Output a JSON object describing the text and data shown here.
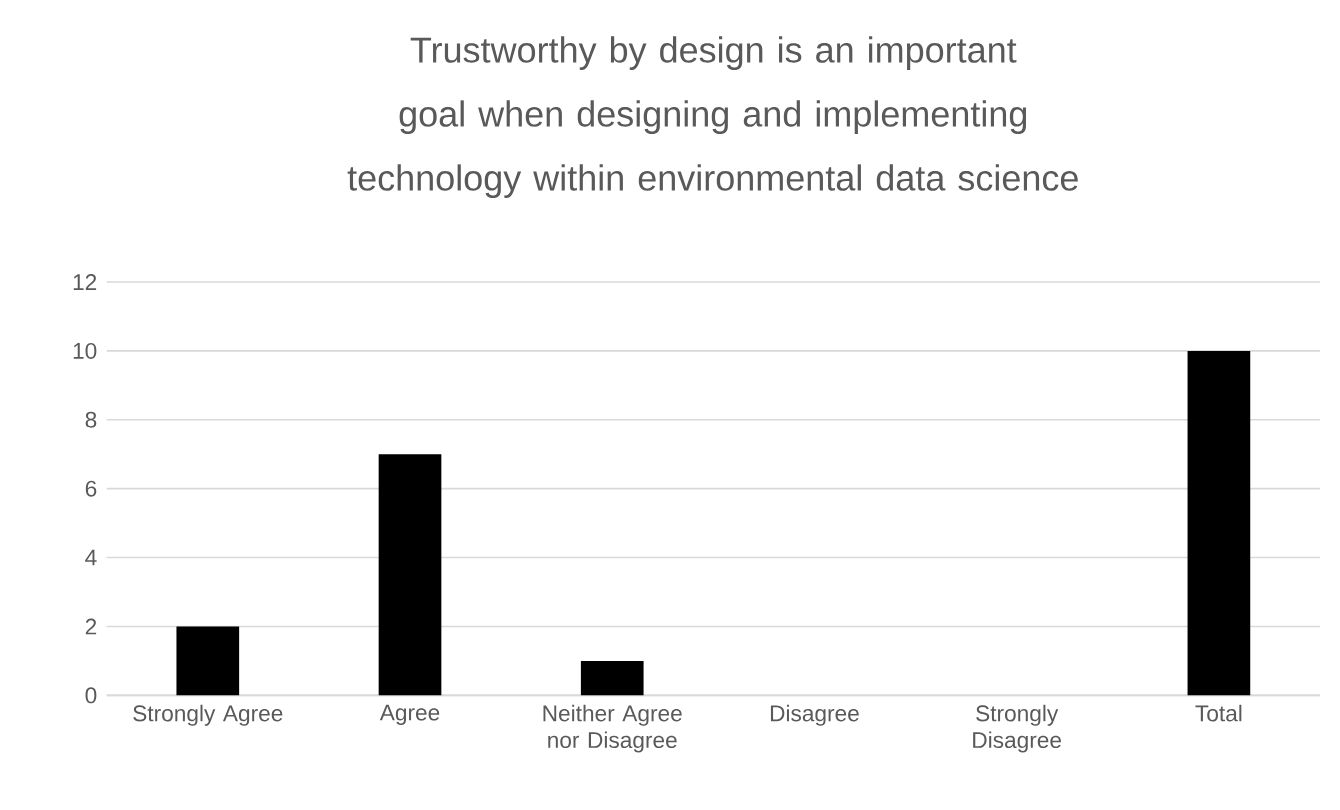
{
  "chart_data": {
    "type": "bar",
    "title": "Trustworthy by design is an important goal when designing and implementing technology within environmental data science",
    "categories": [
      "Strongly Agree",
      "Agree",
      "Neither Agree nor Disagree",
      "Disagree",
      "Strongly Disagree",
      "Total"
    ],
    "values": [
      2,
      7,
      1,
      0,
      0,
      10
    ],
    "color": "#000000",
    "ylim": [
      0,
      12
    ],
    "yticks": [
      0,
      2,
      4,
      6,
      8,
      10,
      12
    ],
    "grid": "y"
  }
}
